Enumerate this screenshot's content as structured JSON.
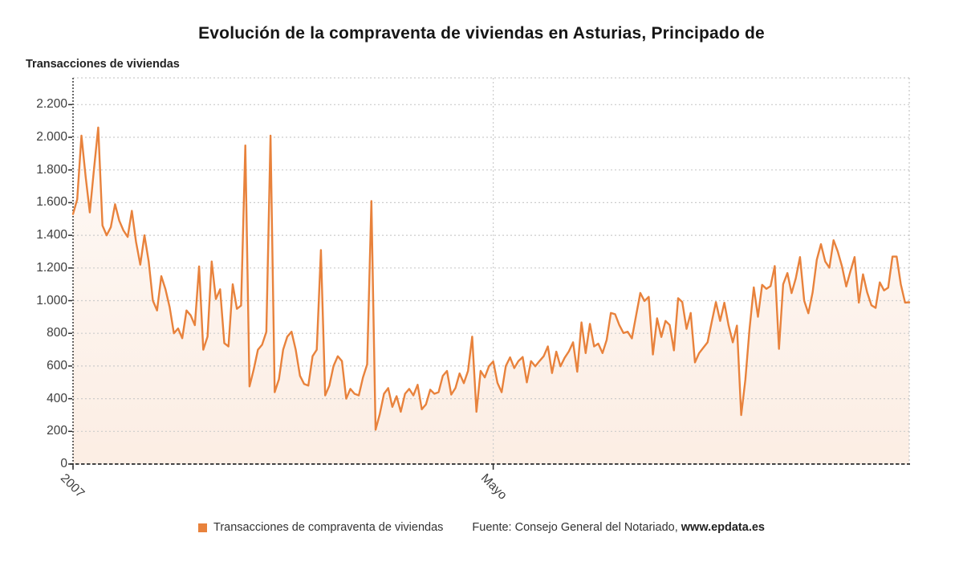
{
  "title": "Evolución de la compraventa de viviendas en Asturias, Principado de",
  "y_axis_title": "Transacciones de viviendas",
  "legend": {
    "source_prefix": "Fuente: Consejo General del Notariado, ",
    "source_bold": "www.epdata.es"
  },
  "colors": {
    "line": "#E8823C",
    "fill_top": "rgba(233,130,60,0.03)",
    "fill_bottom": "rgba(233,130,60,0.14)",
    "grid": "#cccccc",
    "axis": "#2b2b2b",
    "right_border": "#c4c4c4",
    "tick_text": "#3d3d3d"
  },
  "chart_data": {
    "type": "area",
    "title": "Evolución de la compraventa de viviendas en Asturias, Principado de",
    "xlabel": "",
    "ylabel": "Transacciones de viviendas",
    "ylim": [
      0,
      2200
    ],
    "grid": true,
    "legend_position": "bottom",
    "x_ticks": [
      {
        "label": "2007",
        "index": 0
      },
      {
        "label": "Mayo",
        "index": 100
      }
    ],
    "y_ticks": [
      {
        "label": "0",
        "value": 0
      },
      {
        "label": "200",
        "value": 200
      },
      {
        "label": "400",
        "value": 400
      },
      {
        "label": "600",
        "value": 600
      },
      {
        "label": "800",
        "value": 800
      },
      {
        "label": "1.000",
        "value": 1000
      },
      {
        "label": "1.200",
        "value": 1200
      },
      {
        "label": "1.400",
        "value": 1400
      },
      {
        "label": "1.600",
        "value": 1600
      },
      {
        "label": "1.800",
        "value": 1800
      },
      {
        "label": "2.000",
        "value": 2000
      },
      {
        "label": "2.200",
        "value": 2200
      }
    ],
    "series": [
      {
        "name": "Transacciones de compraventa de viviendas",
        "values": [
          1530,
          1620,
          2010,
          1760,
          1540,
          1810,
          2060,
          1460,
          1400,
          1450,
          1590,
          1490,
          1430,
          1390,
          1550,
          1360,
          1220,
          1400,
          1240,
          1000,
          940,
          1150,
          1070,
          960,
          800,
          830,
          770,
          940,
          910,
          850,
          1210,
          700,
          780,
          1240,
          1010,
          1070,
          740,
          720,
          1100,
          950,
          970,
          1950,
          475,
          580,
          700,
          730,
          810,
          2010,
          440,
          520,
          700,
          780,
          810,
          700,
          540,
          490,
          480,
          660,
          700,
          1310,
          420,
          480,
          600,
          660,
          630,
          400,
          460,
          430,
          420,
          530,
          610,
          1610,
          210,
          305,
          430,
          465,
          350,
          415,
          320,
          430,
          460,
          420,
          485,
          335,
          365,
          455,
          430,
          440,
          540,
          570,
          425,
          465,
          555,
          495,
          570,
          780,
          320,
          570,
          530,
          600,
          628,
          497,
          440,
          600,
          653,
          587,
          630,
          655,
          500,
          630,
          598,
          630,
          660,
          720,
          557,
          688,
          598,
          650,
          690,
          745,
          565,
          867,
          679,
          858,
          720,
          737,
          679,
          760,
          925,
          917,
          851,
          802,
          810,
          769,
          908,
          1047,
          998,
          1023,
          671,
          892,
          778,
          876,
          851,
          696,
          1015,
          991,
          827,
          925,
          622,
          679,
          712,
          745,
          870,
          991,
          876,
          987,
          851,
          745,
          847,
          300,
          516,
          827,
          1081,
          901,
          1097,
          1072,
          1089,
          1212,
          705,
          1100,
          1169,
          1046,
          1136,
          1267,
          1000,
          923,
          1050,
          1250,
          1346,
          1240,
          1202,
          1370,
          1300,
          1210,
          1087,
          1180,
          1267,
          988,
          1161,
          1050,
          972,
          956,
          1112,
          1063,
          1080,
          1270,
          1270,
          1100,
          988,
          990
        ]
      }
    ]
  }
}
